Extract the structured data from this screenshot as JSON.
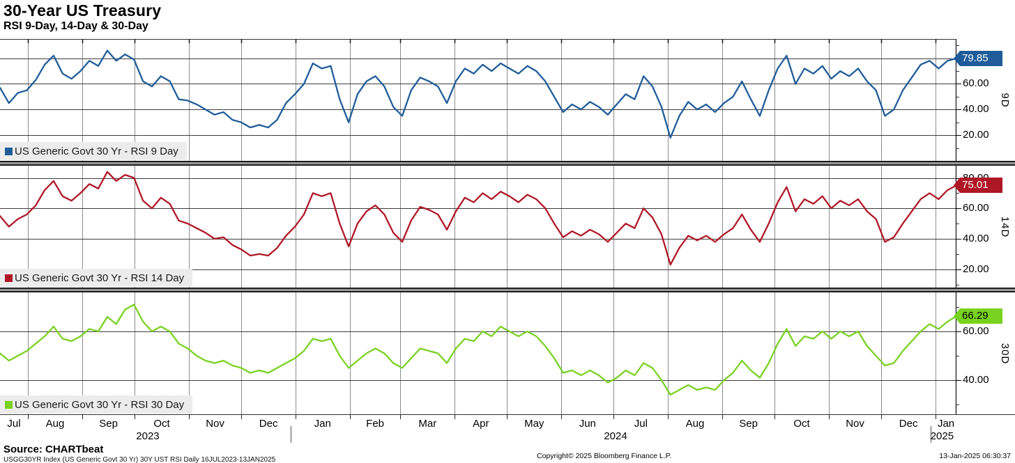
{
  "header": {
    "title": "30-Year US Treasury",
    "subtitle": "RSI 9-Day, 14-Day & 30-Day"
  },
  "colors": {
    "rsi9": "#1f5c99",
    "rsi14": "#b01726",
    "rsi30": "#79d120",
    "grid_v": "#8c8c8c",
    "grid_h": "#3c3c3c",
    "legend_bg": "#ececec"
  },
  "x_axis": {
    "range_label": "16JUL2023-13JAN2025",
    "boundaries": [
      0.0293,
      0.0859,
      0.1408,
      0.1974,
      0.2523,
      0.309,
      0.3656,
      0.4187,
      0.4753,
      0.5302,
      0.5868,
      0.6417,
      0.6984,
      0.755,
      0.8099,
      0.8665,
      0.9214,
      0.9781
    ],
    "months": [
      {
        "label": "Jul",
        "center": 0.0146
      },
      {
        "label": "Aug",
        "center": 0.0576
      },
      {
        "label": "Sep",
        "center": 0.1134
      },
      {
        "label": "Oct",
        "center": 0.1691
      },
      {
        "label": "Nov",
        "center": 0.2249
      },
      {
        "label": "Dec",
        "center": 0.2807
      },
      {
        "label": "Jan",
        "center": 0.3373
      },
      {
        "label": "Feb",
        "center": 0.3922
      },
      {
        "label": "Mar",
        "center": 0.447
      },
      {
        "label": "Apr",
        "center": 0.5028
      },
      {
        "label": "May",
        "center": 0.5585
      },
      {
        "label": "Jun",
        "center": 0.6143
      },
      {
        "label": "Jul",
        "center": 0.6701
      },
      {
        "label": "Aug",
        "center": 0.7267
      },
      {
        "label": "Sep",
        "center": 0.7825
      },
      {
        "label": "Oct",
        "center": 0.8382
      },
      {
        "label": "Nov",
        "center": 0.894
      },
      {
        "label": "Dec",
        "center": 0.9498
      },
      {
        "label": "Jan",
        "center": 0.9891
      }
    ],
    "years": [
      {
        "label": "2023",
        "center": 0.1545
      },
      {
        "label": "2024",
        "center": 0.6436
      },
      {
        "label": "2025",
        "center": 0.985
      }
    ],
    "year_boundaries": [
      0.309,
      0.9781
    ]
  },
  "chart_data": [
    {
      "type": "line",
      "name": "RSI 9 Day",
      "legend": "US Generic Govt 30 Yr - RSI 9 Day",
      "axis_label": "9D",
      "color": "#1f5c99",
      "last_value": 79.85,
      "last_value_label": "79.85",
      "badge_text_color": "#ffffff",
      "ylim": [
        0,
        95
      ],
      "yticks_labeled": [
        20,
        40,
        60
      ],
      "yticks_grid": [
        20,
        40,
        60,
        80
      ],
      "values": [
        57,
        45,
        53,
        55,
        63,
        75,
        82,
        68,
        64,
        70,
        78,
        74,
        86,
        78,
        83,
        79,
        62,
        58,
        66,
        62,
        48,
        47,
        44,
        40,
        36,
        38,
        32,
        30,
        26,
        28,
        26,
        32,
        45,
        52,
        60,
        76,
        72,
        74,
        48,
        30,
        52,
        62,
        66,
        58,
        42,
        35,
        55,
        65,
        62,
        58,
        45,
        62,
        72,
        68,
        75,
        70,
        76,
        72,
        68,
        74,
        70,
        62,
        50,
        38,
        44,
        40,
        46,
        42,
        36,
        44,
        52,
        48,
        66,
        58,
        42,
        18,
        35,
        46,
        40,
        44,
        38,
        45,
        50,
        62,
        48,
        35,
        55,
        72,
        82,
        60,
        72,
        68,
        74,
        64,
        70,
        66,
        72,
        62,
        55,
        35,
        40,
        55,
        65,
        75,
        78,
        72,
        78,
        79.85
      ]
    },
    {
      "type": "line",
      "name": "RSI 14 Day",
      "legend": "US Generic Govt 30 Yr - RSI 14 Day",
      "axis_label": "14D",
      "color": "#b01726",
      "last_value": 75.01,
      "last_value_label": "75.01",
      "badge_text_color": "#ffffff",
      "ylim": [
        8,
        88
      ],
      "yticks_labeled": [
        20,
        40,
        60,
        80
      ],
      "yticks_grid": [
        20,
        40,
        60,
        80
      ],
      "values": [
        55,
        48,
        53,
        56,
        62,
        72,
        78,
        68,
        65,
        70,
        76,
        73,
        84,
        78,
        82,
        80,
        65,
        60,
        67,
        63,
        52,
        50,
        47,
        44,
        40,
        41,
        36,
        33,
        29,
        30,
        29,
        34,
        42,
        48,
        56,
        70,
        68,
        70,
        50,
        35,
        50,
        58,
        62,
        56,
        44,
        38,
        52,
        61,
        59,
        56,
        46,
        58,
        67,
        64,
        70,
        66,
        71,
        68,
        64,
        69,
        66,
        60,
        50,
        41,
        45,
        42,
        46,
        43,
        38,
        44,
        50,
        47,
        60,
        54,
        43,
        23,
        34,
        42,
        39,
        42,
        38,
        43,
        47,
        56,
        46,
        38,
        50,
        64,
        74,
        58,
        66,
        63,
        68,
        60,
        65,
        62,
        66,
        58,
        53,
        38,
        41,
        50,
        58,
        66,
        70,
        66,
        72,
        75.01
      ]
    },
    {
      "type": "line",
      "name": "RSI 30 Day",
      "legend": "US Generic Govt 30 Yr - RSI 30 Day",
      "axis_label": "30D",
      "color": "#79d120",
      "last_value": 66.29,
      "last_value_label": "66.29",
      "badge_text_color": "#000000",
      "ylim": [
        26,
        76
      ],
      "yticks_labeled": [
        40,
        60
      ],
      "yticks_grid": [
        40,
        60
      ],
      "values": [
        51,
        48,
        50,
        52,
        55,
        58,
        62,
        57,
        56,
        58,
        61,
        60,
        66,
        63,
        69,
        71,
        64,
        60,
        62,
        60,
        55,
        53,
        50,
        48,
        47,
        48,
        46,
        45,
        43,
        44,
        43,
        45,
        47,
        49,
        52,
        57,
        56,
        57,
        50,
        45,
        48,
        51,
        53,
        51,
        47,
        45,
        49,
        53,
        52,
        51,
        47,
        53,
        57,
        56,
        60,
        58,
        62,
        60,
        58,
        60,
        58,
        54,
        49,
        43,
        44,
        42,
        44,
        42,
        39,
        41,
        44,
        42,
        47,
        45,
        40,
        34,
        36,
        38,
        36,
        37,
        36,
        40,
        43,
        48,
        44,
        41,
        47,
        55,
        61,
        54,
        58,
        57,
        60,
        57,
        60,
        58,
        60,
        54,
        50,
        46,
        47,
        52,
        56,
        60,
        63,
        61,
        64,
        66.29
      ]
    }
  ],
  "footer": {
    "source": "Source: CHARTbeat",
    "ticker_line": "USGG30YR Index (US Generic Govt 30 Yr) 30Y UST RSI  Daily 16JUL2023-13JAN2025",
    "copyright": "Copyright© 2025 Bloomberg Finance L.P.",
    "timestamp": "13-Jan-2025 06:30:37"
  }
}
